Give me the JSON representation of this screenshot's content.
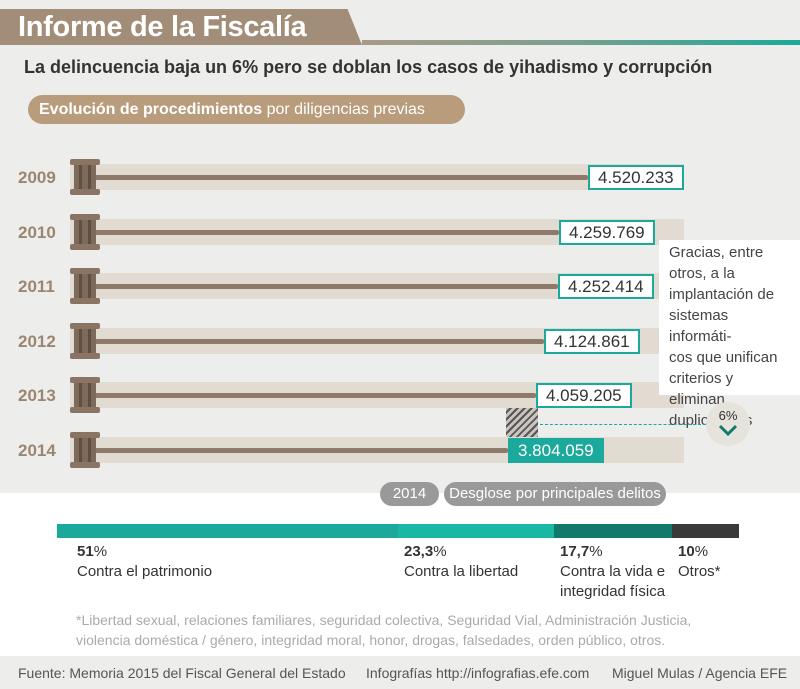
{
  "header": {
    "title": "Informe de la Fiscalía",
    "subtitle": "La delincuencia baja un 6% pero se doblan los casos de yihadismo y corrupción",
    "section_bold": "Evolución de procedimientos",
    "section_rest": "por diligencias previas"
  },
  "chart_data": [
    {
      "type": "bar",
      "orientation": "horizontal",
      "categories": [
        "2009",
        "2010",
        "2011",
        "2012",
        "2013",
        "2014"
      ],
      "values": [
        4520233,
        4259769,
        4252414,
        4124861,
        4059205,
        3804059
      ],
      "value_labels": [
        "4.520.233",
        "4.259.769",
        "4.252.414",
        "4.124.861",
        "4.059.205",
        "3.804.059"
      ],
      "highlight": "2014",
      "change_label": "6%",
      "grid": false
    },
    {
      "type": "bar",
      "orientation": "stacked-horizontal",
      "title_tags": [
        "2014",
        "Desglose por principales delitos"
      ],
      "categories": [
        "Contra el patrimonio",
        "Contra la libertad",
        "Contra la vida e integridad física",
        "Otros*"
      ],
      "values": [
        51,
        23.3,
        17.7,
        10
      ],
      "value_labels": [
        "51%",
        "23,3%",
        "17,7%",
        "10%"
      ],
      "colors": [
        "#1aa99a",
        "#18b8a4",
        "#127a6c",
        "#3a3a3a"
      ]
    }
  ],
  "note": {
    "text": "Gracias, entre otros, a la implantación de sistemas informáticos que unifican criterios y eliminan duplicidades",
    "lines": [
      "Gracias, entre",
      "otros, a la",
      "implantación de",
      "sistemas informáti-",
      "cos que unifican",
      "criterios y eliminan",
      "duplicidades"
    ]
  },
  "breakdown_labels": [
    {
      "pct": "51",
      "unit": "%",
      "line1": "Contra el patrimonio",
      "line2": ""
    },
    {
      "pct": "23,3",
      "unit": "%",
      "line1": "Contra la libertad",
      "line2": ""
    },
    {
      "pct": "17,7",
      "unit": "%",
      "line1": "Contra la vida e",
      "line2": "integridad física"
    },
    {
      "pct": "10",
      "unit": "%",
      "line1": "Otros*",
      "line2": ""
    }
  ],
  "footnote": "*Libertad sexual, relaciones familiares, seguridad colectiva, Seguridad Vial, Administración Justicia, violencia doméstica / género, integridad moral, honor, drogas, falsedades, orden público, otros.",
  "footer": {
    "source": "Fuente: Memoria 2015 del Fiscal General del Estado",
    "site": "Infografías http://infografias.efe.com",
    "credit": "Miguel Mulas / Agencia EFE"
  },
  "colors": {
    "accent": "#1aa99a",
    "bar": "#8d7a6a",
    "title_bg": "#a28e78",
    "pill_bg": "#b89c7c"
  }
}
